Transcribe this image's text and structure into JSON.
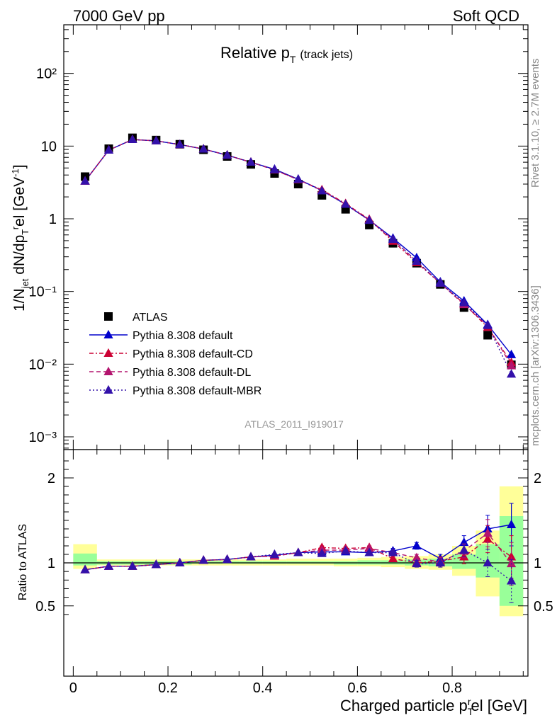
{
  "header": {
    "left": "7000 GeV pp",
    "right": "Soft QCD"
  },
  "side_text": {
    "rivet": "Rivet 3.1.10, ≥ 2.7M events",
    "source": "mcplots.cern.ch [arXiv:1306.3436]"
  },
  "chart_data": [
    {
      "type": "scatter",
      "panel": "main",
      "title": {
        "main": "Relative p",
        "sub": "T",
        "suffix": "(track jets)"
      },
      "analysis_label": "ATLAS_2011_I919017",
      "ylabel": "1/N_jet dN/dp_T^rel [GeV^-1]",
      "yscale": "log",
      "ylim": [
        0.0006,
        500
      ],
      "xlim": [
        -0.02,
        0.96
      ],
      "ytick_labels": [
        "10⁻³",
        "10⁻²",
        "10⁻¹",
        "1",
        "10",
        "10²"
      ],
      "legend_position": "lower-left",
      "x": [
        0.025,
        0.075,
        0.125,
        0.175,
        0.225,
        0.275,
        0.325,
        0.375,
        0.425,
        0.475,
        0.525,
        0.575,
        0.625,
        0.675,
        0.725,
        0.775,
        0.825,
        0.875,
        0.925
      ],
      "series": [
        {
          "name": "ATLAS",
          "color": "#000000",
          "marker": "square",
          "line": "none",
          "values": [
            3.8,
            9.2,
            13.0,
            12.1,
            10.6,
            8.9,
            7.2,
            5.6,
            4.2,
            3.0,
            2.1,
            1.35,
            0.82,
            0.46,
            0.245,
            0.125,
            0.06,
            0.025,
            0.0098
          ]
        },
        {
          "name": "Pythia 8.308 default",
          "color": "#0000cc",
          "marker": "triangle",
          "line": "solid",
          "values": [
            3.3,
            8.8,
            12.3,
            11.8,
            10.5,
            9.1,
            7.5,
            6.0,
            4.8,
            3.5,
            2.45,
            1.58,
            0.96,
            0.54,
            0.29,
            0.135,
            0.074,
            0.035,
            0.0135
          ]
        },
        {
          "name": "Pythia 8.308 default-CD",
          "color": "#cc0033",
          "marker": "triangle",
          "line": "dashdot",
          "values": [
            3.3,
            8.8,
            12.3,
            11.8,
            10.5,
            9.1,
            7.5,
            6.0,
            4.7,
            3.45,
            2.5,
            1.62,
            0.98,
            0.49,
            0.25,
            0.13,
            0.068,
            0.032,
            0.0105
          ]
        },
        {
          "name": "Pythia 8.308 default-DL",
          "color": "#b3146e",
          "marker": "triangle",
          "line": "dashed",
          "values": [
            3.3,
            8.8,
            12.3,
            11.8,
            10.5,
            9.1,
            7.5,
            6.0,
            4.7,
            3.45,
            2.45,
            1.58,
            0.97,
            0.52,
            0.26,
            0.13,
            0.066,
            0.034,
            0.0095
          ]
        },
        {
          "name": "Pythia 8.308 default-MBR",
          "color": "#3311aa",
          "marker": "triangle",
          "line": "dotted",
          "values": [
            3.3,
            8.8,
            12.3,
            11.8,
            10.5,
            9.1,
            7.5,
            6.0,
            4.75,
            3.5,
            2.42,
            1.58,
            0.95,
            0.52,
            0.26,
            0.13,
            0.07,
            0.034,
            0.0073
          ]
        }
      ]
    },
    {
      "type": "scatter",
      "panel": "ratio",
      "ylabel": "Ratio to ATLAS",
      "xlabel": "Charged particle p_T^rel [GeV]",
      "xlim": [
        -0.02,
        0.96
      ],
      "ylim": [
        0.3,
        2.3
      ],
      "xtick_labels": [
        "0",
        "0.2",
        "0.4",
        "0.6",
        "0.8"
      ],
      "ytick_labels": [
        "0.5",
        "1",
        "2"
      ],
      "x": [
        0.025,
        0.075,
        0.125,
        0.175,
        0.225,
        0.275,
        0.325,
        0.375,
        0.425,
        0.475,
        0.525,
        0.575,
        0.625,
        0.675,
        0.725,
        0.775,
        0.825,
        0.875,
        0.925
      ],
      "bin_edges": [
        0.0,
        0.05,
        0.1,
        0.15,
        0.2,
        0.25,
        0.3,
        0.35,
        0.4,
        0.45,
        0.5,
        0.55,
        0.6,
        0.65,
        0.7,
        0.75,
        0.8,
        0.85,
        0.9,
        0.95
      ],
      "bands": {
        "yellow": {
          "color": "#ffff99",
          "low": [
            0.93,
            0.97,
            0.97,
            0.97,
            0.97,
            0.97,
            0.97,
            0.97,
            0.97,
            0.97,
            0.97,
            0.96,
            0.96,
            0.95,
            0.93,
            0.92,
            0.85,
            0.61,
            0.38
          ],
          "high": [
            1.22,
            1.04,
            1.04,
            1.04,
            1.04,
            1.04,
            1.04,
            1.04,
            1.04,
            1.05,
            1.05,
            1.05,
            1.06,
            1.07,
            1.08,
            1.1,
            1.2,
            1.38,
            1.9
          ]
        },
        "green": {
          "color": "#99ff99",
          "low": [
            0.97,
            0.98,
            0.98,
            0.98,
            0.98,
            0.99,
            0.99,
            0.99,
            0.99,
            0.99,
            0.99,
            0.98,
            0.98,
            0.98,
            0.97,
            0.96,
            0.93,
            0.83,
            0.5
          ],
          "high": [
            1.11,
            1.02,
            1.02,
            1.02,
            1.02,
            1.02,
            1.02,
            1.02,
            1.02,
            1.02,
            1.02,
            1.02,
            1.03,
            1.03,
            1.04,
            1.05,
            1.1,
            1.22,
            1.55
          ]
        }
      },
      "series": [
        {
          "name": "Pythia 8.308 default",
          "color": "#0000cc",
          "line": "solid",
          "values": [
            0.92,
            0.96,
            0.96,
            0.98,
            1.0,
            1.03,
            1.04,
            1.07,
            1.09,
            1.12,
            1.13,
            1.13,
            1.12,
            1.14,
            1.2,
            1.05,
            1.24,
            1.4,
            1.45
          ],
          "err": [
            0,
            0,
            0,
            0,
            0,
            0,
            0,
            0,
            0,
            0,
            0.02,
            0.02,
            0.02,
            0.03,
            0.04,
            0.05,
            0.08,
            0.16,
            0.25
          ]
        },
        {
          "name": "Pythia 8.308 default-CD",
          "color": "#cc0033",
          "line": "dashdot",
          "values": [
            0.92,
            0.96,
            0.96,
            0.98,
            1.0,
            1.03,
            1.04,
            1.07,
            1.08,
            1.12,
            1.18,
            1.17,
            1.18,
            1.05,
            1.0,
            1.02,
            1.07,
            1.28,
            1.07
          ],
          "err": [
            0,
            0,
            0,
            0,
            0,
            0,
            0,
            0,
            0,
            0,
            0.02,
            0.02,
            0.02,
            0.03,
            0.04,
            0.05,
            0.08,
            0.16,
            0.25
          ]
        },
        {
          "name": "Pythia 8.308 default-DL",
          "color": "#b3146e",
          "line": "dashed",
          "values": [
            0.92,
            0.96,
            0.96,
            0.98,
            1.0,
            1.03,
            1.04,
            1.07,
            1.08,
            1.12,
            1.15,
            1.15,
            1.17,
            1.12,
            1.06,
            1.01,
            1.14,
            1.35,
            0.99
          ],
          "err": [
            0,
            0,
            0,
            0,
            0,
            0,
            0,
            0,
            0,
            0,
            0.02,
            0.02,
            0.02,
            0.03,
            0.04,
            0.05,
            0.08,
            0.16,
            0.25
          ]
        },
        {
          "name": "Pythia 8.308 default-MBR",
          "color": "#3311aa",
          "line": "dotted",
          "values": [
            0.92,
            0.96,
            0.96,
            0.98,
            1.0,
            1.03,
            1.04,
            1.07,
            1.1,
            1.12,
            1.11,
            1.14,
            1.12,
            1.12,
            0.99,
            1.0,
            1.15,
            1.0,
            0.79
          ],
          "err": [
            0,
            0,
            0,
            0,
            0,
            0,
            0,
            0,
            0,
            0,
            0.02,
            0.02,
            0.02,
            0.03,
            0.04,
            0.05,
            0.08,
            0.16,
            0.25
          ]
        }
      ]
    }
  ]
}
